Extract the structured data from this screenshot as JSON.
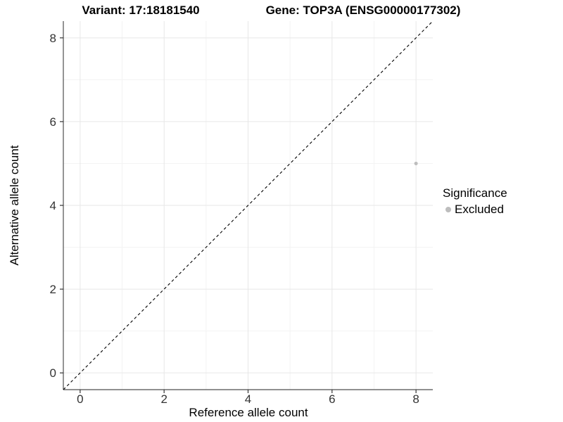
{
  "figure": {
    "title_left": "Variant: 17:18181540",
    "title_right": "Gene: TOP3A (ENSG00000177302)"
  },
  "chart_data": {
    "type": "scatter",
    "xlabel": "Reference allele count",
    "ylabel": "Alternative allele count",
    "xlim": [
      -0.4,
      8.4
    ],
    "ylim": [
      -0.4,
      8.4
    ],
    "x_major_ticks": [
      0,
      2,
      4,
      6,
      8
    ],
    "y_major_ticks": [
      0,
      2,
      4,
      6,
      8
    ],
    "x_minor_ticks": [
      1,
      3,
      5,
      7
    ],
    "y_minor_ticks": [
      1,
      3,
      5,
      7
    ],
    "grid": "major+minor",
    "identity_line": {
      "style": "dashed",
      "from": [
        -0.4,
        -0.4
      ],
      "to": [
        8.4,
        8.4
      ],
      "color": "#000000"
    },
    "series": [
      {
        "name": "Excluded",
        "color": "#bdbdbd",
        "point_radius": 2.5,
        "points": [
          {
            "x": 8,
            "y": 5
          }
        ]
      }
    ],
    "legend": {
      "title": "Significance",
      "position": "right",
      "items": [
        {
          "label": "Excluded",
          "color": "#bdbdbd"
        }
      ]
    },
    "colors": {
      "grid_major": "#e7e7e7",
      "grid_minor": "#f3f3f3",
      "axis_line": "#4d4d4d",
      "tick_mark": "#333333",
      "tick_label": "#333333",
      "background": "#ffffff"
    }
  }
}
